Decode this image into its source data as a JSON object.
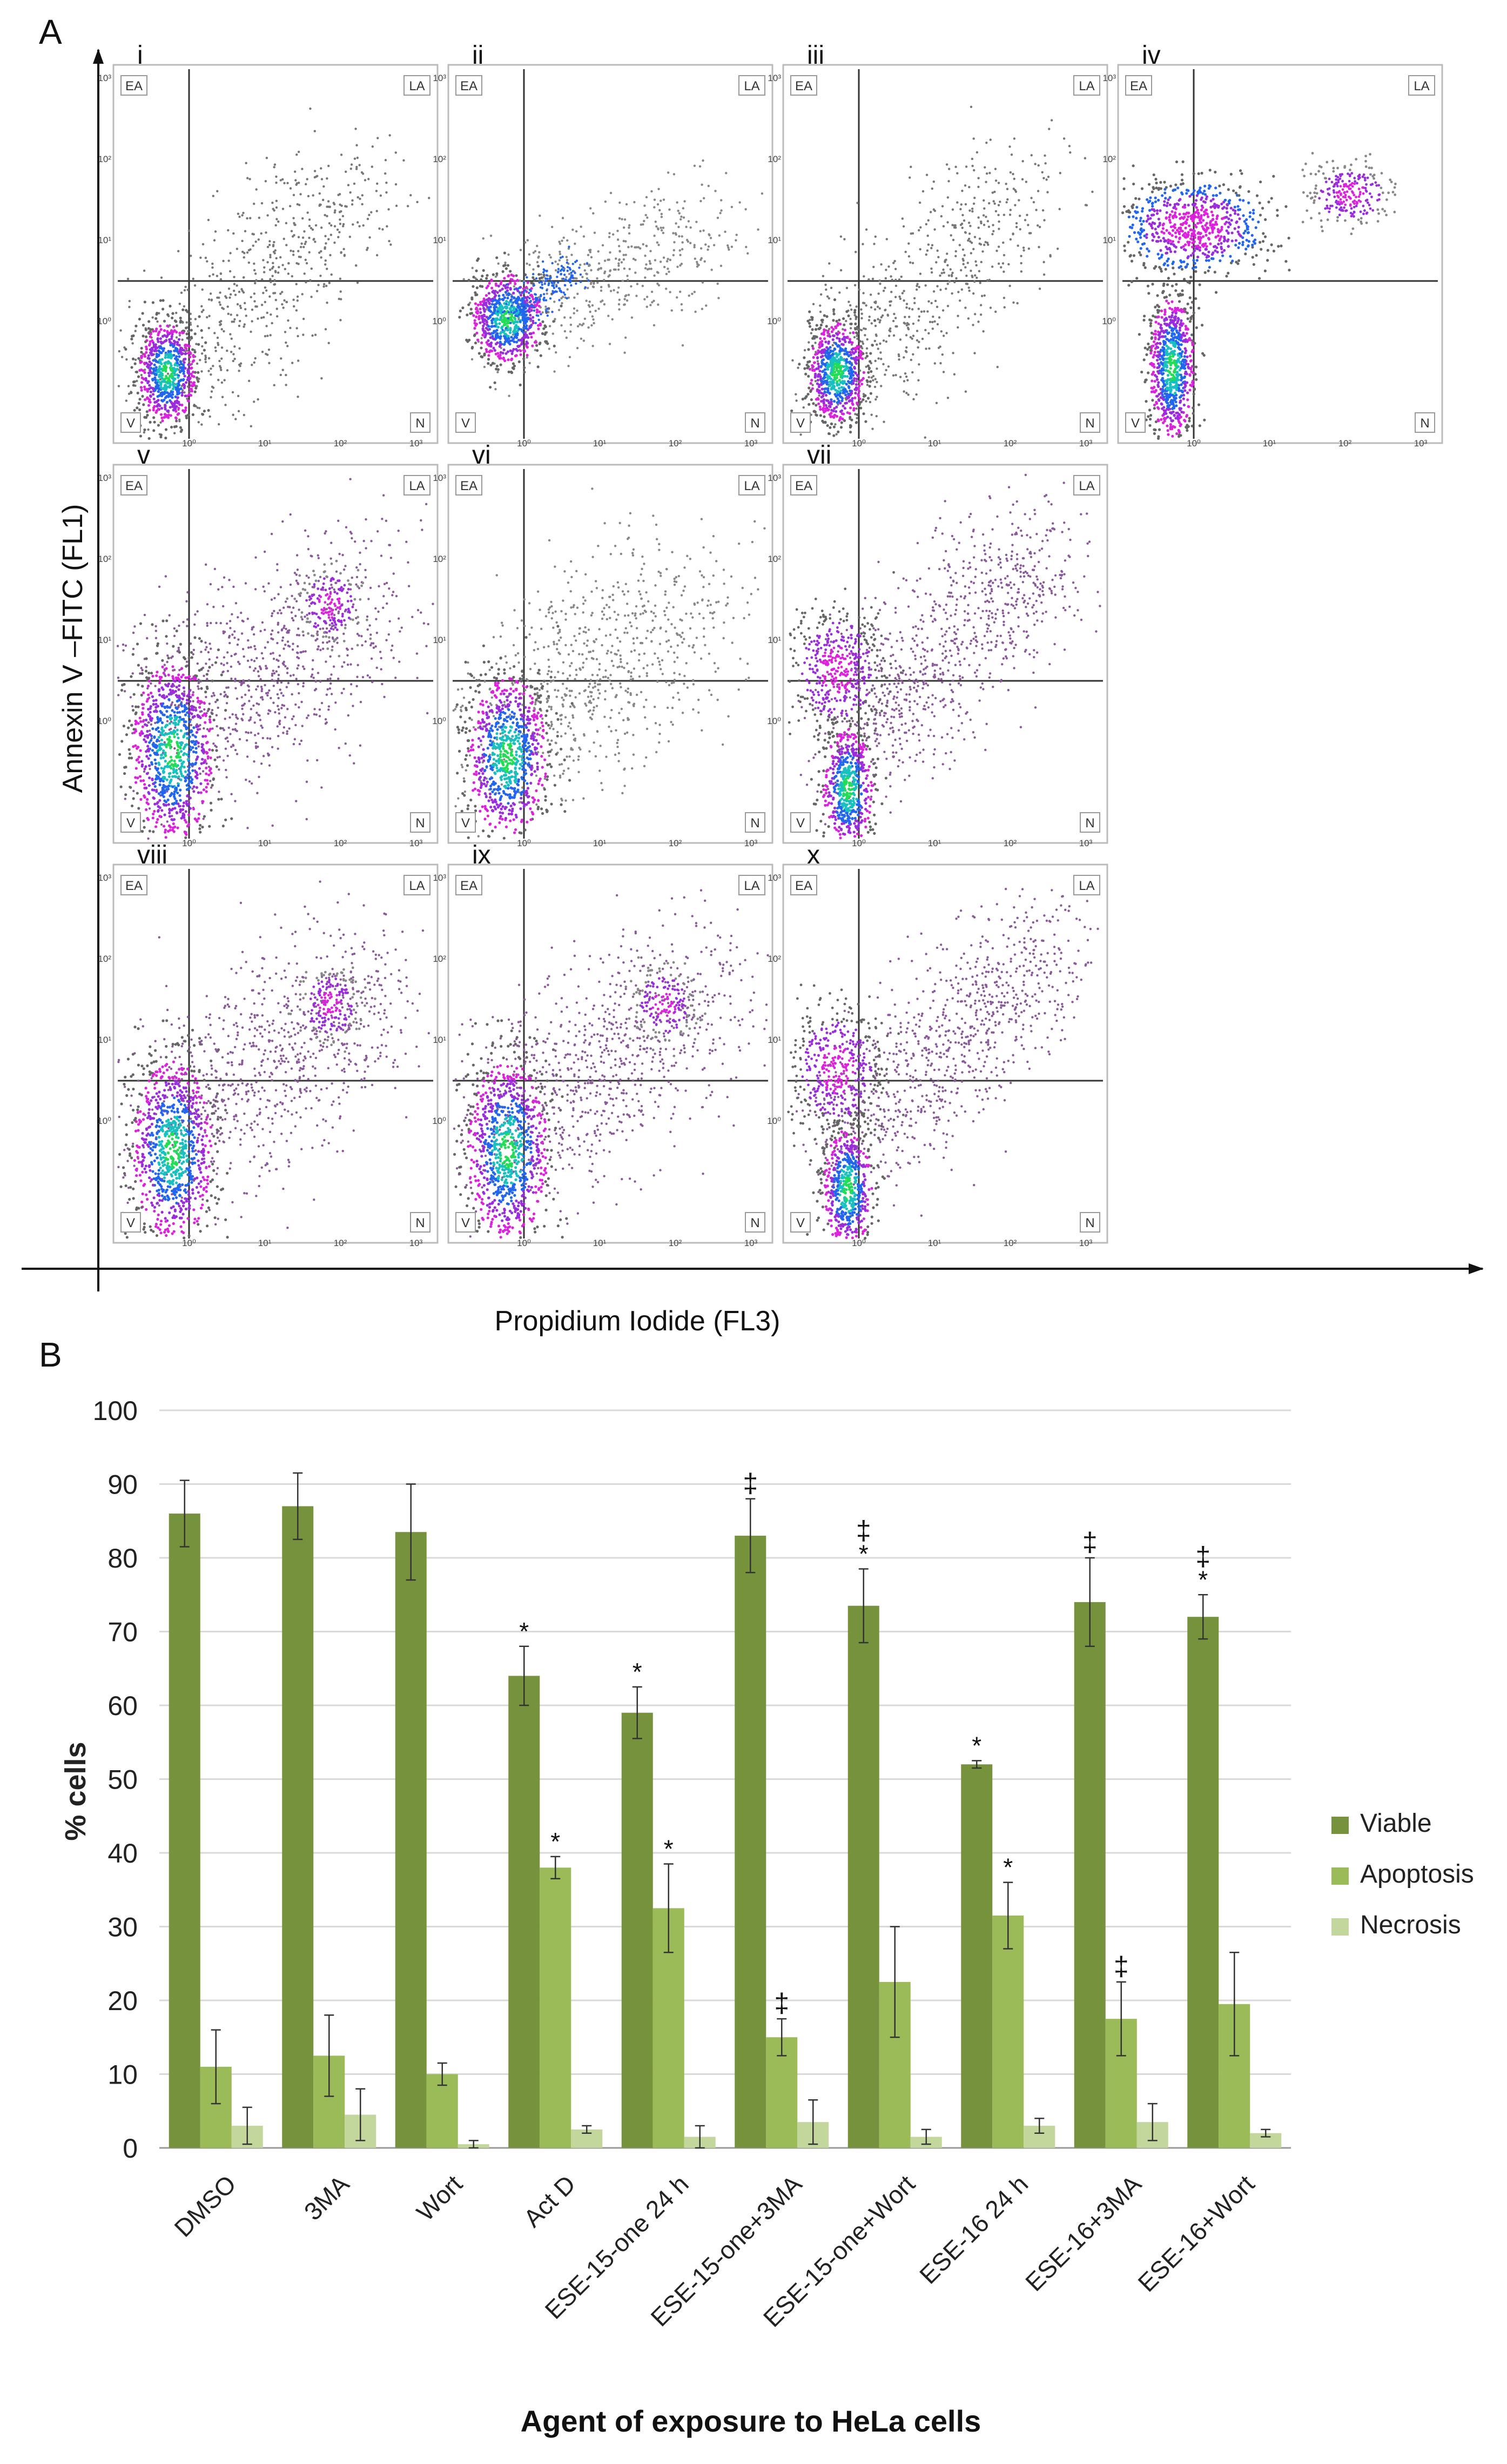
{
  "panel_a": {
    "letter": "A",
    "y_axis_title": "Annexin V –FITC (FL1)",
    "x_axis_title": "Propidium Iodide (FL3)",
    "quadrant_labels": {
      "ea": "EA",
      "la": "LA",
      "v": "V",
      "n": "N"
    },
    "x_tick_labels": [
      "10⁰",
      "10¹",
      "10²",
      "10³"
    ],
    "y_tick_labels": [
      "10⁰",
      "10¹",
      "10²",
      "10³"
    ],
    "plots": [
      {
        "label": "i",
        "pattern": "control_dim"
      },
      {
        "label": "ii",
        "pattern": "diagonal"
      },
      {
        "label": "iii",
        "pattern": "control_dim"
      },
      {
        "label": "iv",
        "pattern": "apoptotic"
      },
      {
        "label": "v",
        "pattern": "spread_la"
      },
      {
        "label": "vi",
        "pattern": "spread"
      },
      {
        "label": "vii",
        "pattern": "diagonal_broad"
      },
      {
        "label": "viii",
        "pattern": "spread_la"
      },
      {
        "label": "ix",
        "pattern": "spread_la"
      },
      {
        "label": "x",
        "pattern": "diagonal_broad"
      }
    ]
  },
  "panel_b": {
    "letter": "B"
  },
  "colors": {
    "viable": "#76923c",
    "apoptosis": "#9bbb59",
    "necrosis": "#c3d69b"
  },
  "chart_data": {
    "type": "bar",
    "title": "",
    "xlabel": "Agent of exposure to HeLa cells",
    "ylabel": "% cells",
    "ylim": [
      0,
      100
    ],
    "yticks": [
      0,
      10,
      20,
      30,
      40,
      50,
      60,
      70,
      80,
      90,
      100
    ],
    "grid": true,
    "legend_position": "right",
    "categories": [
      "DMSO",
      "3MA",
      "Wort",
      "Act D",
      "ESE-15-one 24 h",
      "ESE-15-one+3MA",
      "ESE-15-one+Wort",
      "ESE-16 24 h",
      "ESE-16+3MA",
      "ESE-16+Wort"
    ],
    "series": [
      {
        "name": "Viable",
        "values": [
          86,
          87,
          83.5,
          64,
          59,
          83,
          73.5,
          52,
          74,
          72
        ],
        "errors": [
          4.5,
          4.5,
          6.5,
          4,
          3.5,
          5,
          5,
          0.5,
          6,
          3
        ],
        "annotations": [
          "",
          "",
          "",
          "*",
          "*",
          "‡",
          "‡\n*",
          "*",
          "‡",
          "‡\n*"
        ]
      },
      {
        "name": "Apoptosis",
        "values": [
          11,
          12.5,
          10,
          38,
          32.5,
          15,
          22.5,
          31.5,
          17.5,
          19.5
        ],
        "errors": [
          5,
          5.5,
          1.5,
          1.5,
          6,
          2.5,
          7.5,
          4.5,
          5,
          7
        ],
        "annotations": [
          "",
          "",
          "",
          "*",
          "*",
          "‡",
          "",
          "*",
          "‡",
          ""
        ]
      },
      {
        "name": "Necrosis",
        "values": [
          3,
          4.5,
          0.5,
          2.5,
          1.5,
          3.5,
          1.5,
          3,
          3.5,
          2
        ],
        "errors": [
          2.5,
          3.5,
          0.5,
          0.5,
          1.5,
          3,
          1,
          1,
          2.5,
          0.5
        ],
        "annotations": [
          "",
          "",
          "",
          "",
          "",
          "",
          "",
          "",
          "",
          ""
        ]
      }
    ]
  }
}
